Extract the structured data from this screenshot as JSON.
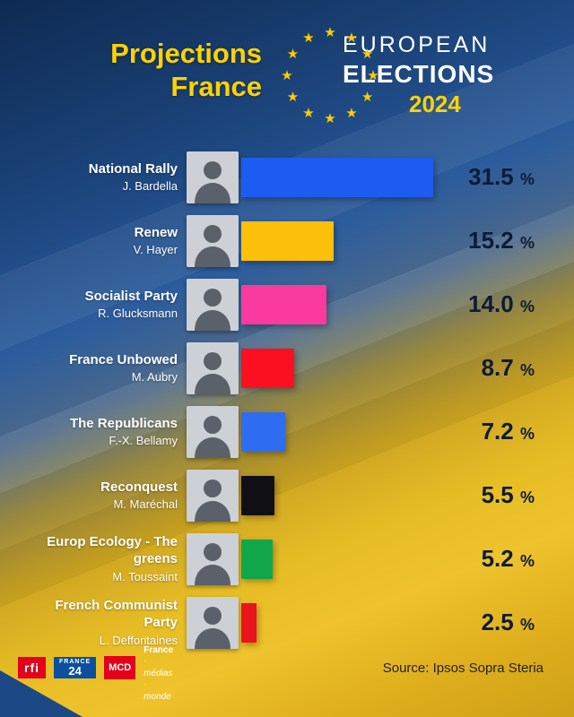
{
  "header": {
    "title_line1": "Projections",
    "title_line2": "France",
    "logo_line1": "EUROPEAN",
    "logo_line2": "ELECTIONS",
    "logo_line3": "2024"
  },
  "chart_data": {
    "type": "bar",
    "orientation": "horizontal",
    "title": "Projections France",
    "subtitle": "European Elections 2024",
    "unit": "%",
    "xlim": [
      0,
      32
    ],
    "categories": [
      "National Rally",
      "Renew",
      "Socialist Party",
      "France Unbowed",
      "The Republicans",
      "Reconquest",
      "Europ Ecology - The greens",
      "French Communist Party"
    ],
    "candidates": [
      "J. Bardella",
      "V. Hayer",
      "R. Glucksmann",
      "M. Aubry",
      "F.-X. Bellamy",
      "M. Maréchal",
      "M. Toussaint",
      "L. Deffontaines"
    ],
    "values": [
      31.5,
      15.2,
      14.0,
      8.7,
      7.2,
      5.5,
      5.2,
      2.5
    ],
    "value_labels": [
      "31.5",
      "15.2",
      "14.0",
      "8.7",
      "7.2",
      "5.5",
      "5.2",
      "2.5"
    ],
    "bar_colors": [
      "#1d5cf0",
      "#fcbf0a",
      "#fb3aa0",
      "#fa1020",
      "#2e6cf2",
      "#101014",
      "#12a64b",
      "#e8141e"
    ],
    "legend": null,
    "grid": false
  },
  "footer": {
    "rfi_label": "rfi",
    "france24_line1": "FRANCE",
    "france24_line2": "24",
    "mcd_label": "MCD",
    "fmm_line1": "France",
    "fmm_line2": "médias",
    "fmm_line3": "monde",
    "source": "Source: Ipsos Sopra Steria"
  },
  "colors": {
    "accent_yellow": "#ffd200",
    "star_yellow": "#ffcc00",
    "percent_text": "#0d1b36",
    "background_blue": "#1f4a84",
    "background_gold": "#e7bd25"
  }
}
